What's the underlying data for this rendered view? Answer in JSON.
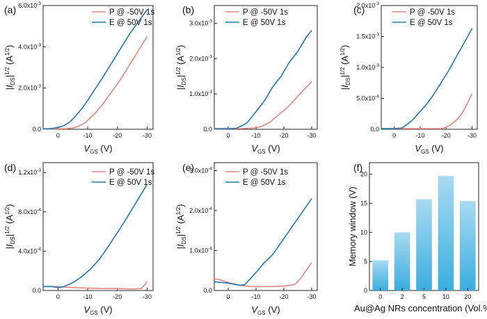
{
  "figure": {
    "colors": {
      "P": "#e8847f",
      "E": "#1f78b4",
      "bar_top": "#a8daf1",
      "bar_bottom": "#3aaedf",
      "axis": "#222222"
    }
  },
  "chart_data": [
    {
      "id": "a",
      "label": "(a)",
      "type": "line",
      "xlabel_main": "V",
      "xlabel_sub": "GS",
      "xlabel_unit": "(V)",
      "ylabel": "|IDS|1/2 (A1/2)",
      "xlim": [
        5,
        -32
      ],
      "ylim": [
        0,
        0.006
      ],
      "xticks": [
        0,
        -10,
        -20,
        -30
      ],
      "xtick_labels": [
        "0",
        "-10",
        "-20",
        "-30"
      ],
      "yticks": [
        0,
        0.002,
        0.004,
        0.006
      ],
      "ytick_labels": [
        "0.0",
        "2.0x10-3",
        "4.0x10-3",
        "6.0x10-3"
      ],
      "series": [
        {
          "name": "P @ -50V 1s",
          "key": "P",
          "x": [
            5,
            0,
            -3,
            -5,
            -7,
            -9,
            -12,
            -15,
            -18,
            -21,
            -24,
            -27,
            -30
          ],
          "y": [
            1e-05,
            2e-05,
            3e-05,
            6e-05,
            0.00015,
            0.0003,
            0.0007,
            0.0012,
            0.0018,
            0.0024,
            0.0031,
            0.0038,
            0.0045
          ]
        },
        {
          "name": "E @ 50V 1s",
          "key": "E",
          "x": [
            5,
            2,
            0,
            -2,
            -4,
            -6,
            -8,
            -10,
            -12,
            -15,
            -18,
            -21,
            -24,
            -27,
            -30
          ],
          "y": [
            2e-05,
            4e-05,
            8e-05,
            0.00018,
            0.00035,
            0.00065,
            0.001,
            0.0014,
            0.00185,
            0.0025,
            0.0032,
            0.0039,
            0.0046,
            0.0052,
            0.0058
          ]
        }
      ]
    },
    {
      "id": "b",
      "label": "(b)",
      "type": "line",
      "xlabel_main": "V",
      "xlabel_sub": "GS",
      "xlabel_unit": "(V)",
      "ylabel": "|IDS|1/2 (A1/2)",
      "xlim": [
        5,
        -32
      ],
      "ylim": [
        0,
        0.0035
      ],
      "xticks": [
        0,
        -10,
        -20,
        -30
      ],
      "xtick_labels": [
        "0",
        "-10",
        "-20",
        "-30"
      ],
      "yticks": [
        0,
        0.001,
        0.002,
        0.003
      ],
      "ytick_labels": [
        "0.0",
        "1.0x10-3",
        "2.0x10-3",
        "3.0x10-3"
      ],
      "series": [
        {
          "name": "P @ -50V 1s",
          "key": "P",
          "x": [
            5,
            -5,
            -10,
            -12,
            -15,
            -18,
            -21,
            -24,
            -27,
            -30
          ],
          "y": [
            1e-05,
            2e-05,
            4e-05,
            8e-05,
            0.0002,
            0.0004,
            0.0006,
            0.00085,
            0.0011,
            0.00135
          ]
        },
        {
          "name": "E @ 50V 1s",
          "key": "E",
          "x": [
            5,
            0,
            -3,
            -5,
            -7,
            -10,
            -13,
            -16,
            -19,
            -22,
            -25,
            -28,
            -30
          ],
          "y": [
            2e-05,
            2e-05,
            3e-05,
            0.0001,
            0.0002,
            0.0005,
            0.0008,
            0.0012,
            0.0015,
            0.0019,
            0.0022,
            0.0026,
            0.0028
          ]
        }
      ]
    },
    {
      "id": "c",
      "label": "(c)",
      "type": "line",
      "xlabel_main": "V",
      "xlabel_sub": "GS",
      "xlabel_unit": "(V)",
      "ylabel": "|IDS|1/2 (A1/2)",
      "xlim": [
        5,
        -32
      ],
      "ylim": [
        0,
        0.002
      ],
      "xticks": [
        0,
        -10,
        -20,
        -30
      ],
      "xtick_labels": [
        "0",
        "-10",
        "-20",
        "-30"
      ],
      "yticks": [
        0,
        0.0005,
        0.001,
        0.0015,
        0.002
      ],
      "ytick_labels": [
        "0.0",
        "5.0x10-4",
        "1.0x10-3",
        "1.5x10-3",
        "2.0x10-3"
      ],
      "series": [
        {
          "name": "P @ -50V 1s",
          "key": "P",
          "x": [
            5,
            -10,
            -18,
            -20,
            -22,
            -24,
            -26,
            -28,
            -30
          ],
          "y": [
            1e-05,
            1e-05,
            1e-05,
            3e-05,
            8e-05,
            0.00015,
            0.00025,
            0.0004,
            0.00058
          ]
        },
        {
          "name": "E @ 50V 1s",
          "key": "E",
          "x": [
            5,
            0,
            -3,
            -5,
            -7,
            -9,
            -12,
            -15,
            -18,
            -21,
            -24,
            -27,
            -30
          ],
          "y": [
            1e-05,
            1e-05,
            2e-05,
            8e-05,
            0.00015,
            0.00024,
            0.00038,
            0.00055,
            0.00075,
            0.00095,
            0.00118,
            0.0014,
            0.00163
          ]
        }
      ]
    },
    {
      "id": "d",
      "label": "(d)",
      "type": "line",
      "xlabel_main": "V",
      "xlabel_sub": "GS",
      "xlabel_unit": "(V)",
      "ylabel": "|IDS|1/2 (A1/2)",
      "xlim": [
        5,
        -32
      ],
      "ylim": [
        0,
        0.0013
      ],
      "xticks": [
        0,
        -10,
        -20,
        -30
      ],
      "xtick_labels": [
        "0",
        "-10",
        "-20",
        "-30"
      ],
      "yticks": [
        0,
        0.0004,
        0.0008,
        0.0012
      ],
      "ytick_labels": [
        "0.0",
        "4.0x10-4",
        "8.0x10-4",
        "1.2x10-3"
      ],
      "series": [
        {
          "name": "P @ -50V 1s",
          "key": "P",
          "x": [
            5,
            0,
            -5,
            -10,
            -15,
            -20,
            -25,
            -28,
            -29,
            -30
          ],
          "y": [
            4e-05,
            4e-05,
            3e-05,
            2.5e-05,
            2e-05,
            2e-05,
            1.5e-05,
            2e-05,
            5e-05,
            9e-05
          ]
        },
        {
          "name": "E @ 50V 1s",
          "key": "E",
          "x": [
            5,
            2,
            0,
            -2,
            -5,
            -8,
            -11,
            -14,
            -17,
            -20,
            -23,
            -26,
            -29,
            -30
          ],
          "y": [
            4e-05,
            4e-05,
            3e-05,
            4e-05,
            8e-05,
            0.00014,
            0.00022,
            0.00032,
            0.00045,
            0.00059,
            0.00073,
            0.00088,
            0.00103,
            0.00108
          ]
        }
      ]
    },
    {
      "id": "e",
      "label": "(e)",
      "type": "line",
      "xlabel_main": "V",
      "xlabel_sub": "GS",
      "xlabel_unit": "(V)",
      "ylabel": "|IDS|1/2 (A1/2)",
      "xlim": [
        5,
        -32
      ],
      "ylim": [
        0,
        0.00032
      ],
      "xticks": [
        0,
        -10,
        -20,
        -30
      ],
      "xtick_labels": [
        "0",
        "-10",
        "-20",
        "-30"
      ],
      "yticks": [
        0,
        0.0001,
        0.0002,
        0.0003
      ],
      "ytick_labels": [
        "0.0",
        "1.0x10-4",
        "2.0x10-4",
        "3.0x10-4"
      ],
      "series": [
        {
          "name": "P @ -50V 1s",
          "key": "P",
          "x": [
            5,
            2,
            0,
            -3,
            -5,
            -8,
            -12,
            -16,
            -20,
            -24,
            -26,
            -28,
            -30
          ],
          "y": [
            3e-05,
            2.5e-05,
            2e-05,
            1.5e-05,
            1.2e-05,
            1e-05,
            1e-05,
            1e-05,
            1.1e-05,
            1.5e-05,
            3e-05,
            5e-05,
            7e-05
          ]
        },
        {
          "name": "E @ 50V 1s",
          "key": "E",
          "x": [
            5,
            2,
            0,
            -2,
            -4,
            -6,
            -8,
            -10,
            -13,
            -16,
            -19,
            -22,
            -25,
            -28,
            -30
          ],
          "y": [
            2.2e-05,
            2e-05,
            1.8e-05,
            1.6e-05,
            1.3e-05,
            1.5e-05,
            3e-05,
            4.5e-05,
            7e-05,
            9e-05,
            0.00012,
            0.00015,
            0.00018,
            0.00021,
            0.00023
          ]
        }
      ]
    },
    {
      "id": "f",
      "label": "(f)",
      "type": "bar",
      "title": "",
      "xlabel": "Au@Ag NRs concentration (Vol.%)",
      "ylabel": "Memory window (V)",
      "categories": [
        "0",
        "2",
        "5",
        "10",
        "20"
      ],
      "values": [
        5.2,
        10.0,
        15.7,
        19.7,
        15.4
      ],
      "ylim": [
        0,
        22
      ],
      "yticks": [
        0,
        5,
        10,
        15,
        20
      ],
      "ytick_labels": [
        "0",
        "5",
        "10",
        "15",
        "20"
      ]
    }
  ]
}
